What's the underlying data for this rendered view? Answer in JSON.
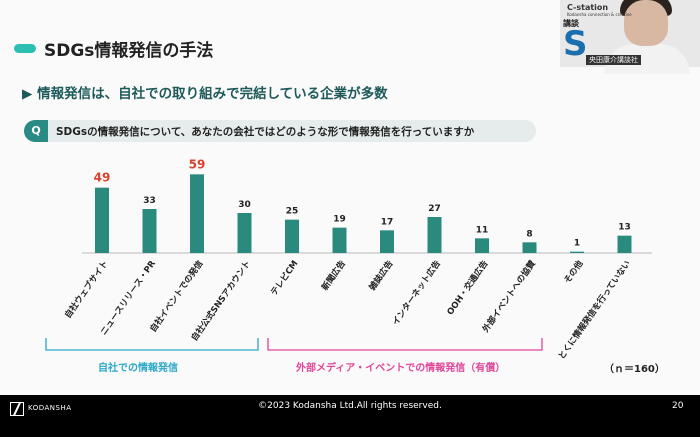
{
  "slide": {
    "title": "SDGs情報発信の手法",
    "subtitle": "▶ 情報発信は、自社での取り組みで完結している企業が多数",
    "question_badge": "Q",
    "question_text": "SDGsの情報発信について、あなたの会社ではどのような形で情報発信を行っていますか",
    "n_label": "（ｎ＝160）"
  },
  "chart_data": {
    "type": "bar",
    "categories": [
      "自社ウェブサイト",
      "ニュースリリース・PR",
      "自社イベントでの発信",
      "自社公式SNSアカウント",
      "テレビCM",
      "新聞広告",
      "雑誌広告",
      "インターネット広告",
      "OOH・交通広告",
      "外部イベントへの協賛",
      "その他",
      "とくに情報発信を行っていない"
    ],
    "values": [
      49,
      33,
      59,
      30,
      25,
      19,
      17,
      27,
      11,
      8,
      1,
      13
    ],
    "highlighted": [
      true,
      false,
      true,
      false,
      false,
      false,
      false,
      false,
      false,
      false,
      false,
      false
    ],
    "ylim": [
      0,
      60
    ],
    "groups": [
      {
        "label": "自社での情報発信",
        "color": "#2aa7c9"
      },
      {
        "label": "外部メディア・イベントでの情報発信（有償）",
        "color": "#e0469a"
      }
    ],
    "bar_color": "#2a8a7e",
    "highlight_label_color": "#d8432e"
  },
  "footer": {
    "logo_text": "KODANSHA",
    "copyright": "©2023 Kodansha Ltd.All rights reserved.",
    "page_number": "20"
  },
  "webcam": {
    "brand": "C-station",
    "brand_sub": "Kodansha connection & creative",
    "side_text": "講談",
    "big_letter": "S",
    "name_tag": "央田康介講談社"
  }
}
